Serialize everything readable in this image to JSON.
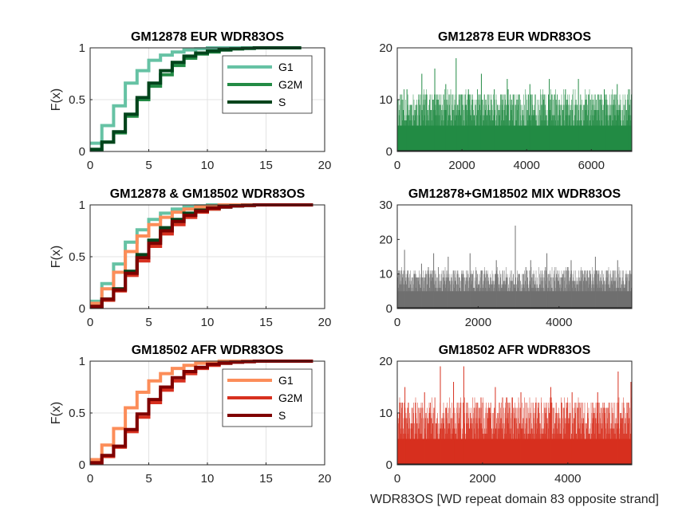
{
  "chart_data": [
    {
      "id": "cdf_eur",
      "type": "line",
      "step": true,
      "title": "GM12878 EUR WDR83OS",
      "ylabel": "F(x)",
      "xlabel": "",
      "xlim": [
        0,
        20
      ],
      "ylim": [
        0,
        1
      ],
      "xticks": [
        "0",
        "5",
        "10",
        "15",
        "20"
      ],
      "yticks": [
        "0",
        "0.5",
        "1"
      ],
      "grid": true,
      "legend": "top-right",
      "series": [
        {
          "name": "G1",
          "color": "#66c2a4",
          "x": [
            0,
            1,
            2,
            3,
            4,
            5,
            6,
            7,
            8,
            9,
            10,
            11,
            12,
            18
          ],
          "y": [
            0.08,
            0.25,
            0.44,
            0.66,
            0.78,
            0.88,
            0.93,
            0.96,
            0.98,
            0.99,
            1.0,
            1.0,
            1.0,
            1.0
          ]
        },
        {
          "name": "G2M",
          "color": "#238b45",
          "x": [
            0,
            1,
            2,
            3,
            4,
            5,
            6,
            7,
            8,
            9,
            10,
            11,
            12,
            13,
            14,
            18
          ],
          "y": [
            0.02,
            0.09,
            0.18,
            0.34,
            0.5,
            0.63,
            0.74,
            0.83,
            0.9,
            0.94,
            0.96,
            0.98,
            0.99,
            0.995,
            1.0,
            1.0
          ]
        },
        {
          "name": "S",
          "color": "#00441b",
          "x": [
            0,
            1,
            2,
            3,
            4,
            5,
            6,
            7,
            8,
            9,
            10,
            11,
            12,
            13,
            14,
            18
          ],
          "y": [
            0.02,
            0.09,
            0.19,
            0.36,
            0.52,
            0.66,
            0.78,
            0.86,
            0.92,
            0.95,
            0.97,
            0.98,
            0.99,
            0.995,
            1.0,
            1.0
          ]
        }
      ]
    },
    {
      "id": "cdf_mix",
      "type": "line",
      "step": true,
      "title": "GM12878 & GM18502 WDR83OS",
      "ylabel": "F(x)",
      "xlabel": "",
      "xlim": [
        0,
        20
      ],
      "ylim": [
        0,
        1
      ],
      "xticks": [
        "0",
        "5",
        "10",
        "15",
        "20"
      ],
      "yticks": [
        "0",
        "0.5",
        "1"
      ],
      "grid": true,
      "series": [
        {
          "color": "#66c2a4",
          "x": [
            0,
            1,
            2,
            3,
            4,
            5,
            6,
            7,
            8,
            9,
            10,
            11,
            19
          ],
          "y": [
            0.07,
            0.24,
            0.43,
            0.64,
            0.76,
            0.86,
            0.92,
            0.96,
            0.98,
            0.99,
            1.0,
            1.0,
            1.0
          ]
        },
        {
          "color": "#fc8d59",
          "x": [
            0,
            1,
            2,
            3,
            4,
            5,
            6,
            7,
            8,
            9,
            10,
            11,
            12,
            19
          ],
          "y": [
            0.05,
            0.19,
            0.35,
            0.55,
            0.7,
            0.81,
            0.88,
            0.93,
            0.96,
            0.98,
            0.99,
            1.0,
            1.0,
            1.0
          ]
        },
        {
          "color": "#238b45",
          "x": [
            0,
            1,
            2,
            3,
            4,
            5,
            6,
            7,
            8,
            9,
            10,
            11,
            12,
            13,
            14,
            19
          ],
          "y": [
            0.02,
            0.09,
            0.18,
            0.34,
            0.5,
            0.63,
            0.74,
            0.83,
            0.9,
            0.94,
            0.96,
            0.98,
            0.99,
            0.995,
            1.0,
            1.0
          ]
        },
        {
          "color": "#d7301f",
          "x": [
            0,
            1,
            2,
            3,
            4,
            5,
            6,
            7,
            8,
            9,
            10,
            11,
            12,
            13,
            14,
            19
          ],
          "y": [
            0.02,
            0.08,
            0.17,
            0.32,
            0.46,
            0.6,
            0.72,
            0.81,
            0.88,
            0.93,
            0.96,
            0.98,
            0.99,
            0.995,
            1.0,
            1.0
          ]
        },
        {
          "color": "#00441b",
          "x": [
            0,
            1,
            2,
            3,
            4,
            5,
            6,
            7,
            8,
            9,
            10,
            11,
            12,
            13,
            14,
            19
          ],
          "y": [
            0.02,
            0.09,
            0.19,
            0.36,
            0.52,
            0.66,
            0.78,
            0.86,
            0.92,
            0.95,
            0.97,
            0.98,
            0.99,
            0.995,
            1.0,
            1.0
          ]
        },
        {
          "color": "#7f0000",
          "x": [
            0,
            1,
            2,
            3,
            4,
            5,
            6,
            7,
            8,
            9,
            10,
            11,
            12,
            13,
            14,
            19
          ],
          "y": [
            0.02,
            0.09,
            0.18,
            0.34,
            0.49,
            0.63,
            0.75,
            0.84,
            0.9,
            0.94,
            0.97,
            0.98,
            0.99,
            0.995,
            1.0,
            1.0
          ]
        }
      ]
    },
    {
      "id": "cdf_afr",
      "type": "line",
      "step": true,
      "title": "GM18502 AFR WDR83OS",
      "ylabel": "F(x)",
      "xlabel": "",
      "xlim": [
        0,
        20
      ],
      "ylim": [
        0,
        1
      ],
      "xticks": [
        "0",
        "5",
        "10",
        "15",
        "20"
      ],
      "yticks": [
        "0",
        "0.5",
        "1"
      ],
      "grid": true,
      "legend": "top-right",
      "series": [
        {
          "name": "G1",
          "color": "#fc8d59",
          "x": [
            0,
            1,
            2,
            3,
            4,
            5,
            6,
            7,
            8,
            9,
            10,
            11,
            12,
            19
          ],
          "y": [
            0.05,
            0.19,
            0.35,
            0.55,
            0.7,
            0.81,
            0.88,
            0.93,
            0.96,
            0.98,
            0.99,
            1.0,
            1.0,
            1.0
          ]
        },
        {
          "name": "G2M",
          "color": "#d7301f",
          "x": [
            0,
            1,
            2,
            3,
            4,
            5,
            6,
            7,
            8,
            9,
            10,
            11,
            12,
            13,
            14,
            19
          ],
          "y": [
            0.02,
            0.08,
            0.17,
            0.32,
            0.46,
            0.6,
            0.72,
            0.81,
            0.88,
            0.93,
            0.96,
            0.98,
            0.99,
            0.995,
            1.0,
            1.0
          ]
        },
        {
          "name": "S",
          "color": "#7f0000",
          "x": [
            0,
            1,
            2,
            3,
            4,
            5,
            6,
            7,
            8,
            9,
            10,
            11,
            12,
            13,
            14,
            19
          ],
          "y": [
            0.02,
            0.09,
            0.18,
            0.34,
            0.49,
            0.63,
            0.75,
            0.84,
            0.9,
            0.94,
            0.97,
            0.98,
            0.99,
            0.995,
            1.0,
            1.0
          ]
        }
      ]
    },
    {
      "id": "bar_eur",
      "type": "bar",
      "title": "GM12878 EUR WDR83OS",
      "xlabel": "",
      "xlim": [
        0,
        7250
      ],
      "ylim": [
        0,
        20
      ],
      "xticks": [
        0,
        2000,
        4000,
        6000
      ],
      "yticks": [
        0,
        10,
        20
      ],
      "color": "#238b45",
      "n": 7250,
      "base_fill": 5,
      "peaks": [
        [
          1820,
          18
        ],
        [
          1160,
          16
        ],
        [
          760,
          15
        ],
        [
          2600,
          15
        ],
        [
          3400,
          14
        ],
        [
          4700,
          14
        ],
        [
          5600,
          14
        ],
        [
          6800,
          13
        ],
        [
          1500,
          13
        ],
        [
          4100,
          13
        ],
        [
          300,
          12
        ],
        [
          2200,
          12
        ],
        [
          5200,
          12
        ],
        [
          6400,
          12
        ],
        [
          3000,
          12
        ],
        [
          7150,
          12
        ]
      ],
      "typical_max": 11
    },
    {
      "id": "bar_mix",
      "type": "bar",
      "title": "GM12878+GM18502 MIX WDR83OS",
      "xlabel": "",
      "xlim": [
        0,
        5800
      ],
      "ylim": [
        0,
        30
      ],
      "xticks": [
        0,
        2000,
        4000
      ],
      "yticks": [
        0,
        10,
        20,
        30
      ],
      "color": "#707070",
      "n": 5800,
      "base_fill": 5,
      "peaks": [
        [
          2920,
          24
        ],
        [
          180,
          17
        ],
        [
          900,
          16
        ],
        [
          1800,
          16
        ],
        [
          3700,
          16
        ],
        [
          1260,
          15
        ],
        [
          4900,
          15
        ],
        [
          2450,
          14
        ],
        [
          3300,
          14
        ],
        [
          4300,
          14
        ],
        [
          5450,
          14
        ],
        [
          600,
          13
        ]
      ],
      "typical_max": 11
    },
    {
      "id": "bar_afr",
      "type": "bar",
      "title": "GM18502 AFR WDR83OS",
      "xlabel": "WDR83OS [WD repeat domain 83 opposite strand]",
      "xlim": [
        0,
        5500
      ],
      "ylim": [
        0,
        20
      ],
      "xticks": [
        0,
        2000,
        4000
      ],
      "yticks": [
        0,
        10,
        20
      ],
      "color": "#d7301f",
      "n": 5500,
      "base_fill": 5,
      "peaks": [
        [
          1010,
          19
        ],
        [
          1560,
          19
        ],
        [
          5180,
          18
        ],
        [
          5480,
          16
        ],
        [
          1320,
          16
        ],
        [
          2300,
          15
        ],
        [
          3600,
          15
        ],
        [
          4100,
          14
        ],
        [
          180,
          15
        ],
        [
          640,
          14
        ],
        [
          2900,
          14
        ],
        [
          4700,
          14
        ]
      ],
      "typical_max": 12
    }
  ]
}
